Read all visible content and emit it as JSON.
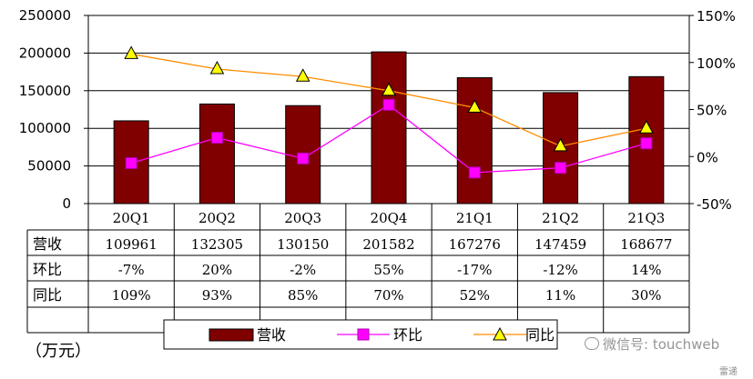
{
  "chart_data": {
    "type": "bar",
    "categories": [
      "20Q1",
      "20Q2",
      "20Q3",
      "20Q4",
      "21Q1",
      "21Q2",
      "21Q3"
    ],
    "series": [
      {
        "name": "营收",
        "kind": "bar",
        "axis": "left",
        "values": [
          109961,
          132305,
          130150,
          201582,
          167276,
          147459,
          168677
        ],
        "display": [
          "109961",
          "132305",
          "130150",
          "201582",
          "167276",
          "147459",
          "168677"
        ],
        "color": "#800000"
      },
      {
        "name": "环比",
        "kind": "line",
        "axis": "right",
        "marker": "square",
        "values": [
          -7,
          20,
          -2,
          55,
          -17,
          -12,
          14
        ],
        "display": [
          "-7%",
          "20%",
          "-2%",
          "55%",
          "-17%",
          "-12%",
          "14%"
        ],
        "color": "#ff00ff"
      },
      {
        "name": "同比",
        "kind": "line",
        "axis": "right",
        "marker": "triangle",
        "values": [
          109,
          93,
          85,
          70,
          52,
          11,
          30
        ],
        "display": [
          "109%",
          "93%",
          "85%",
          "70%",
          "52%",
          "11%",
          "30%"
        ],
        "color": "#ff8c00",
        "marker_color": "#ffff00"
      }
    ],
    "y_left": {
      "ylim": [
        0,
        250000
      ],
      "ticks": [
        "0",
        "50000",
        "100000",
        "150000",
        "200000",
        "250000"
      ]
    },
    "y_right": {
      "ylim": [
        -50,
        150
      ],
      "ticks": [
        "-50%",
        "0%",
        "50%",
        "100%",
        "150%"
      ]
    },
    "grid": true,
    "legend": "bottom",
    "data_table": true
  },
  "unit_label": "（万元）",
  "watermark": "微信号: touchweb",
  "watermark_sub": "雷递",
  "colors": {
    "bar": "#800000",
    "huanbi": "#ff00ff",
    "tongbi_line": "#ff8c00",
    "tongbi_marker": "#ffff00"
  }
}
